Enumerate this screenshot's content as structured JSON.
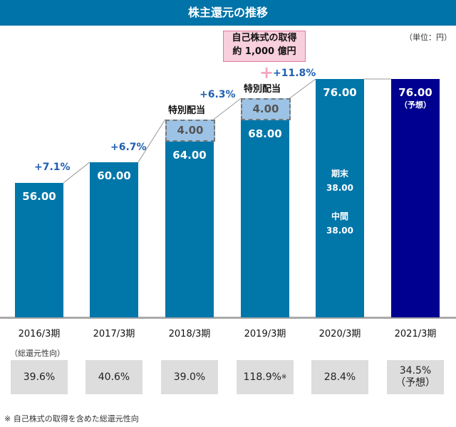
{
  "title": "株主還元の推移",
  "unit": "（単位：円）",
  "callout": {
    "line1": "自己株式の取得",
    "line2": "約 1,000 億円"
  },
  "payout_label": "（総還元性向）",
  "note": "※ 自己株式の取得を含めた総還元性向",
  "chart_data": {
    "type": "bar",
    "title": "株主還元の推移",
    "categories": [
      "2016/3期",
      "2017/3期",
      "2018/3期",
      "2019/3期",
      "2020/3期",
      "2021/3期"
    ],
    "values": [
      56,
      60,
      64,
      68,
      76,
      76
    ],
    "value_labels": [
      "56.00",
      "60.00",
      "64.00",
      "68.00",
      "76.00",
      "76.00"
    ],
    "special_dividend": [
      null,
      null,
      4,
      4,
      null,
      null
    ],
    "special_labels": [
      null,
      null,
      "4.00",
      "4.00",
      null,
      null
    ],
    "special_title": "特別配当",
    "growth": [
      null,
      "+7.1%",
      "+6.7%",
      "+6.3%",
      "+11.8%",
      null
    ],
    "forecast_note": "（予想）",
    "breakdown_2020": {
      "end_label": "期末",
      "end_value": "38.00",
      "mid_label": "中間",
      "mid_value": "38.00"
    },
    "payout_ratio": [
      "39.6%",
      "40.6%",
      "39.0%",
      "118.9%",
      "28.4%",
      "34.5%"
    ],
    "payout_marks": [
      "",
      "",
      "",
      "※",
      "",
      "（予想）"
    ],
    "colors": {
      "bar": "#0076a9",
      "forecast": "#000090",
      "special": "#9cc3e5"
    }
  }
}
